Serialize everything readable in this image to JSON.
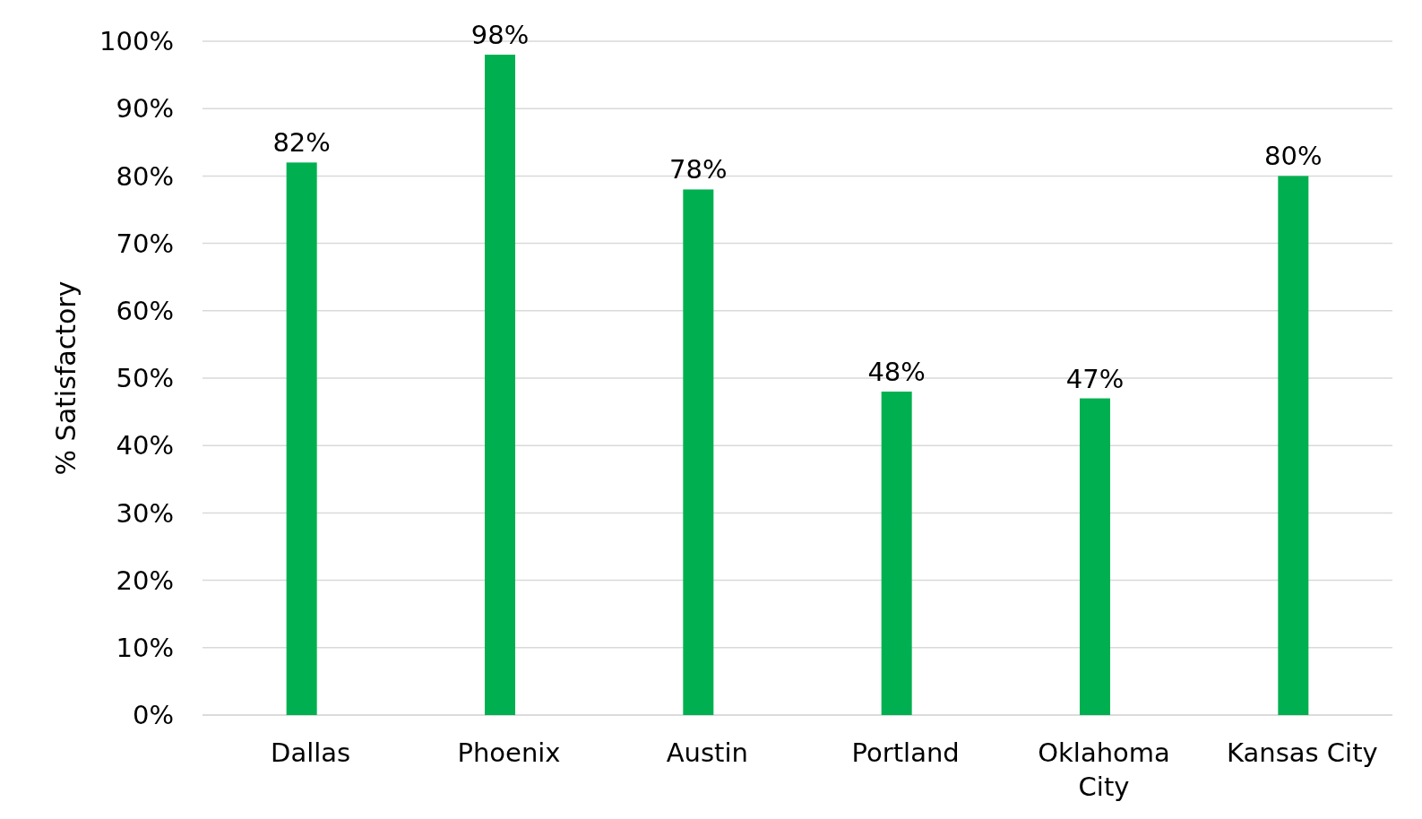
{
  "chart_data": {
    "type": "bar",
    "ylabel": "% Satisfactory",
    "categories": [
      "Dallas",
      "Phoenix",
      "Austin",
      "Portland",
      "Oklahoma City",
      "Kansas City"
    ],
    "values": [
      82,
      98,
      78,
      48,
      47,
      80
    ],
    "value_labels": [
      "82%",
      "98%",
      "78%",
      "48%",
      "47%",
      "80%"
    ],
    "color": "#00b050",
    "ylim": [
      0,
      100
    ],
    "yticks": [
      {
        "value": 0,
        "label": "0%"
      },
      {
        "value": 10,
        "label": "10%"
      },
      {
        "value": 20,
        "label": "20%"
      },
      {
        "value": 30,
        "label": "30%"
      },
      {
        "value": 40,
        "label": "40%"
      },
      {
        "value": 50,
        "label": "50%"
      },
      {
        "value": 60,
        "label": "60%"
      },
      {
        "value": 70,
        "label": "70%"
      },
      {
        "value": 80,
        "label": "80%"
      },
      {
        "value": 90,
        "label": "90%"
      },
      {
        "value": 100,
        "label": "100%"
      }
    ],
    "grid": "y"
  }
}
